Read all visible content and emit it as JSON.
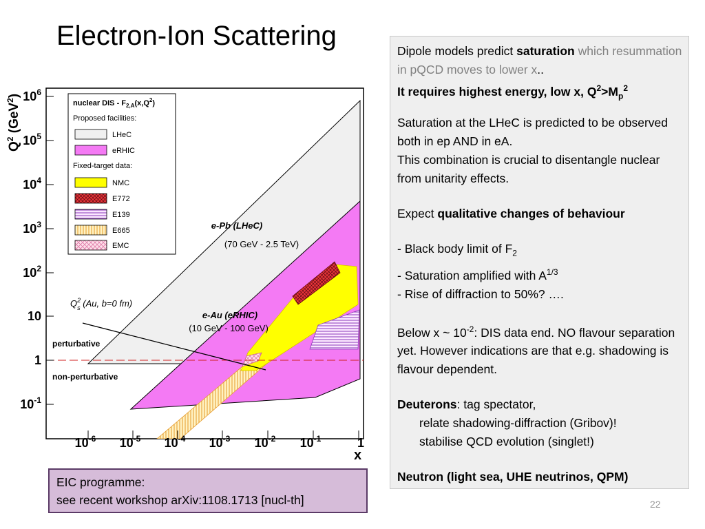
{
  "slide": {
    "title": "Electron-Ion Scattering",
    "page_number": "22"
  },
  "right_panel": {
    "p1_a": "Dipole models predict ",
    "p1_b": "saturation",
    "p1_c": " which resummation in pQCD moves to lower x",
    "p1_d": "..",
    "p1_line2": "It requires highest energy, low x, Q",
    "p1_line2_sup": "2",
    "p1_line2_mid": ">M",
    "p1_line2_sub": "p",
    "p1_line2_sup2": "2",
    "p2_l1": "Saturation at the LHeC is predicted to be observed both in ep AND in eA.",
    "p2_l2": "This combination is crucial to disentangle nuclear from unitarity effects.",
    "p3_a": "Expect ",
    "p3_b": "qualitative changes of  behaviour",
    "b1_a": "- Black body limit of F",
    "b1_sub": "2",
    "b2_a": "- Saturation amplified with A",
    "b2_sup": "1/3",
    "b3": "- Rise of diffraction to 50%? ….",
    "p4_a": "Below x ~ 10",
    "p4_sup": "-2",
    "p4_b": ": DIS data end. NO flavour separation yet. However indications are that e.g. shadowing is flavour dependent.",
    "p5_a": "Deuterons",
    "p5_b": ": tag spectator,",
    "p5_l2": "relate shadowing-diffraction (Gribov)!",
    "p5_l3": "stabilise QCD evolution (singlet!)",
    "p6": "Neutron (light sea, UHE neutrinos, QPM)"
  },
  "eic_box": {
    "line1": "EIC programme:",
    "line2": "see recent workshop arXiv:1108.1713 [nucl-th]"
  },
  "plot": {
    "y_axis_label": "Q",
    "y_axis_label_sup": "2",
    "y_axis_label_unit": " (GeV",
    "y_axis_label_unit_sup": "2",
    "y_axis_label_close": ")",
    "x_axis_label": "x",
    "y_ticks": [
      {
        "base": "10",
        "exp": "6"
      },
      {
        "base": "10",
        "exp": "5"
      },
      {
        "base": "10",
        "exp": "4"
      },
      {
        "base": "10",
        "exp": "3"
      },
      {
        "base": "10",
        "exp": "2"
      },
      {
        "base": "10",
        "exp": ""
      },
      {
        "base": "1",
        "exp": ""
      },
      {
        "base": "10",
        "exp": "-1"
      }
    ],
    "x_ticks": [
      {
        "base": "10",
        "exp": "-6"
      },
      {
        "base": "10",
        "exp": "-5"
      },
      {
        "base": "10",
        "exp": "-4"
      },
      {
        "base": "10",
        "exp": "-3"
      },
      {
        "base": "10",
        "exp": "-2"
      },
      {
        "base": "10",
        "exp": "-1"
      },
      {
        "base": "1",
        "exp": ""
      }
    ],
    "legend": {
      "title": "nuclear DIS - F",
      "title_sub": "2,A",
      "title_tail": "(x,Q",
      "title_sup": "2",
      "title_close": ")",
      "section1": "Proposed facilities:",
      "section2": "Fixed-target data:",
      "entries": [
        {
          "label": "LHeC",
          "color": "#f0f0f0"
        },
        {
          "label": "eRHIC",
          "color": "#f47af4"
        },
        {
          "label": "NMC",
          "color": "#ffff00"
        },
        {
          "label": "E772",
          "color": "#e8343a"
        },
        {
          "label": "E139",
          "color": "#b070d8"
        },
        {
          "label": "E665",
          "color": "#f5c060"
        },
        {
          "label": "EMC",
          "color": "#f0a0c8"
        }
      ]
    },
    "annotations": {
      "epb": "e-Pb (LHeC)",
      "epb_energy": "(70 GeV - 2.5 TeV)",
      "eau": "e-Au (eRHIC)",
      "eau_energy": "(10 GeV - 100 GeV)",
      "qs_a": "Q",
      "qs_sup": "2",
      "qs_sub": "s",
      "qs_b": " (Au, b=0 fm)",
      "perturbative": "perturbative",
      "nonperturbative": "non-perturbative"
    }
  }
}
